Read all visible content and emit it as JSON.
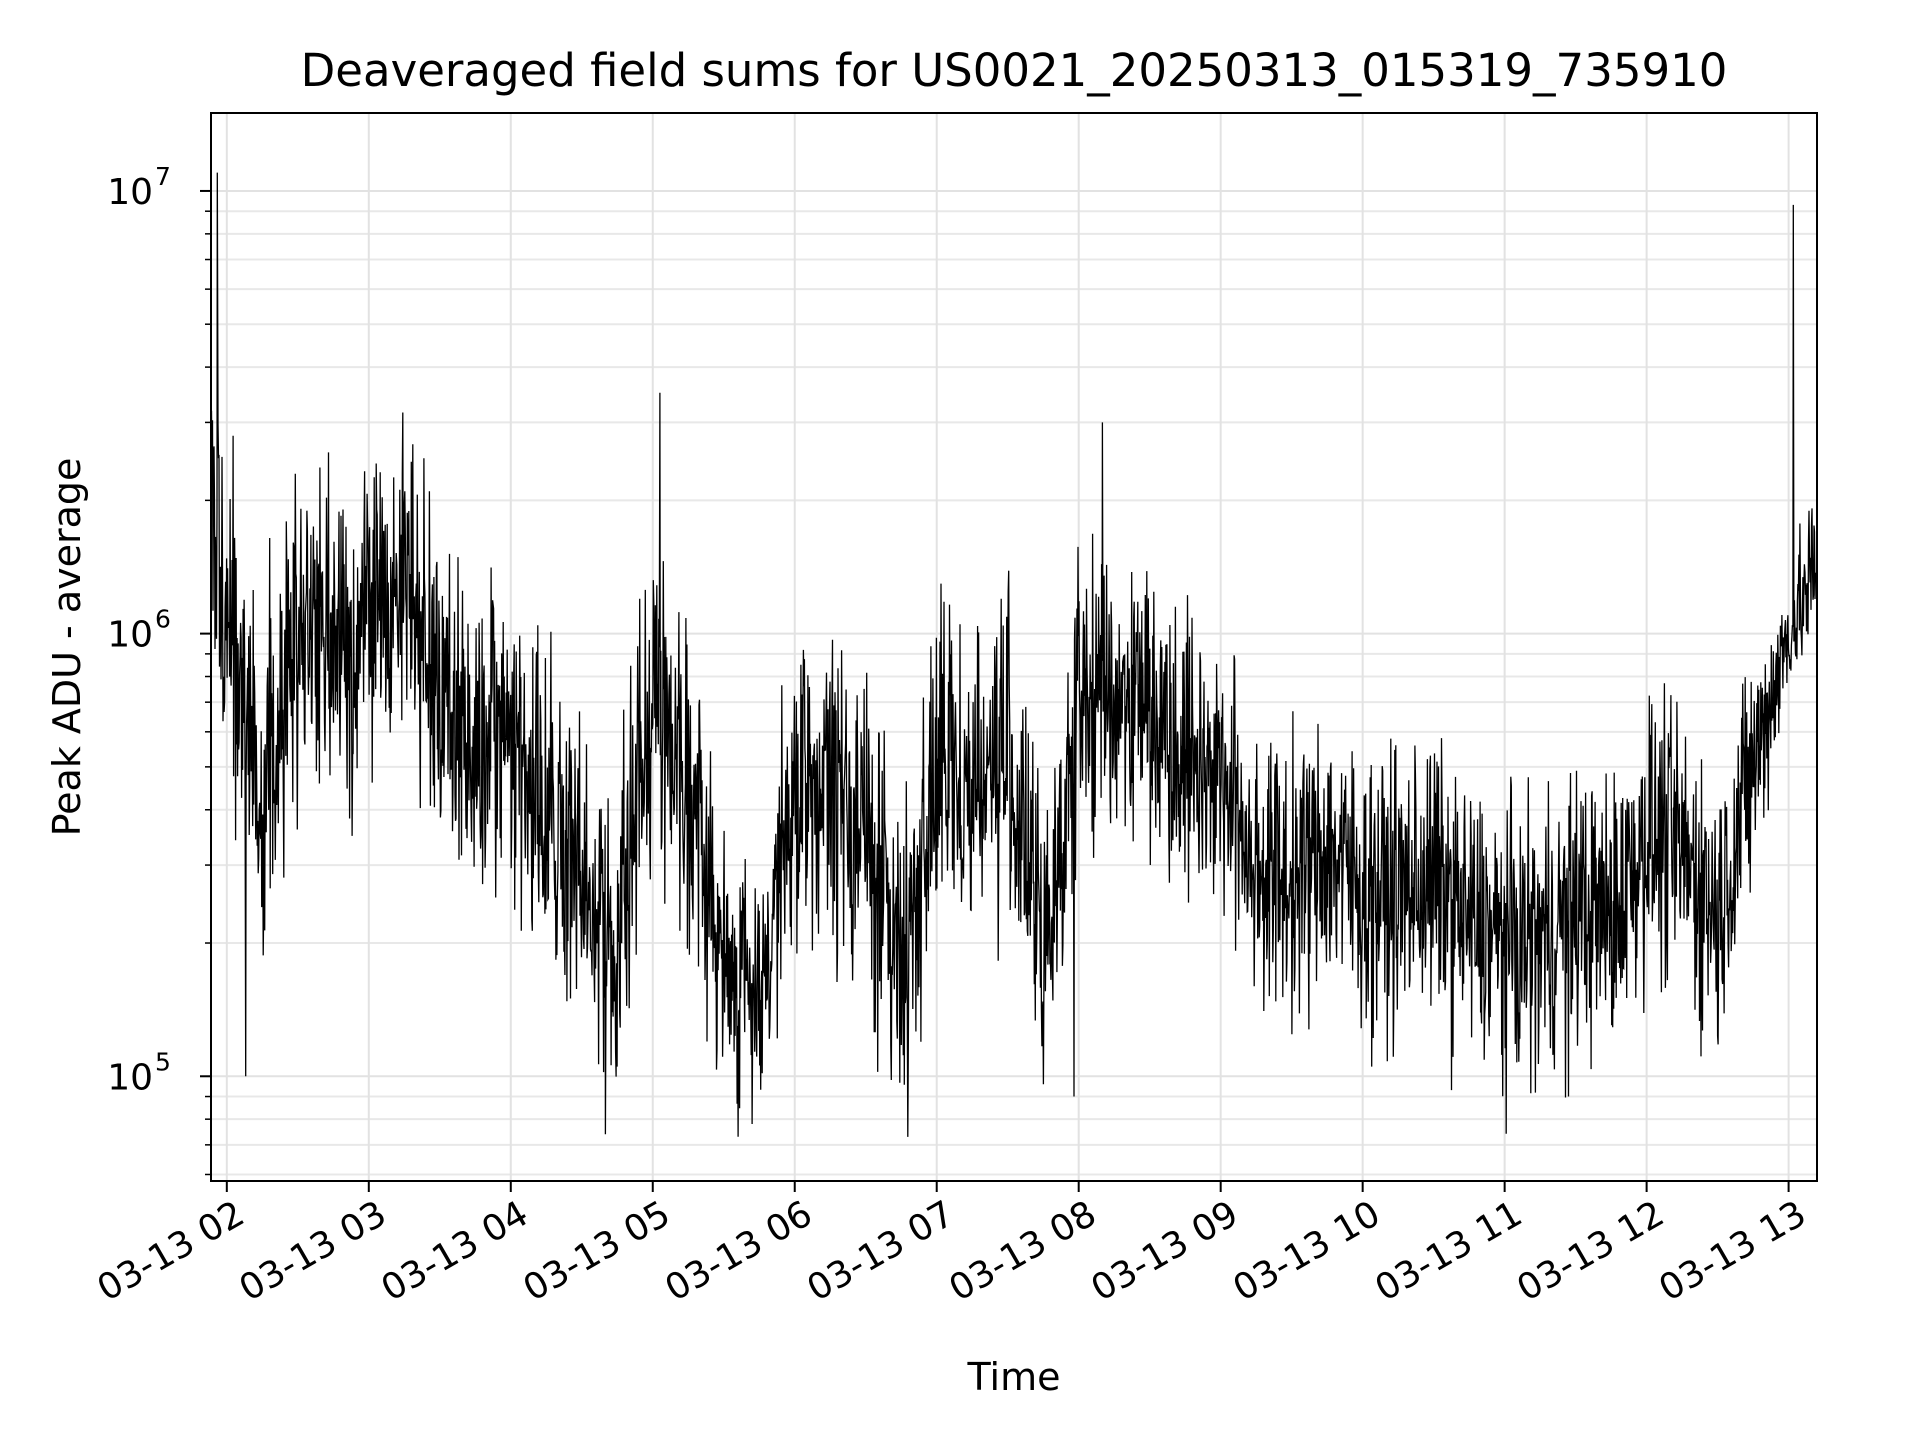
{
  "chart_data": {
    "type": "line",
    "title": "Deaveraged field sums for US0021_20250313_015319_735910",
    "xlabel": "Time",
    "ylabel": "Peak ADU - average",
    "y_scale": "log",
    "ylim": [
      58000,
      15000000
    ],
    "xlim": [
      "2025-03-13T01:53:19",
      "2025-03-13T13:12:00"
    ],
    "grid": true,
    "x_ticks": [
      {
        "value": "2025-03-13T02:00",
        "label": "03-13 02"
      },
      {
        "value": "2025-03-13T03:00",
        "label": "03-13 03"
      },
      {
        "value": "2025-03-13T04:00",
        "label": "03-13 04"
      },
      {
        "value": "2025-03-13T05:00",
        "label": "03-13 05"
      },
      {
        "value": "2025-03-13T06:00",
        "label": "03-13 06"
      },
      {
        "value": "2025-03-13T07:00",
        "label": "03-13 07"
      },
      {
        "value": "2025-03-13T08:00",
        "label": "03-13 08"
      },
      {
        "value": "2025-03-13T09:00",
        "label": "03-13 09"
      },
      {
        "value": "2025-03-13T10:00",
        "label": "03-13 10"
      },
      {
        "value": "2025-03-13T11:00",
        "label": "03-13 11"
      },
      {
        "value": "2025-03-13T12:00",
        "label": "03-13 12"
      },
      {
        "value": "2025-03-13T13:00",
        "label": "03-13 13"
      }
    ],
    "y_ticks": [
      {
        "value": 100000,
        "base": "10",
        "exp": "5"
      },
      {
        "value": 1000000,
        "base": "10",
        "exp": "6"
      },
      {
        "value": 10000000,
        "base": "10",
        "exp": "7"
      }
    ],
    "series_color": "#000000",
    "series": [
      {
        "x": [
          "2025-03-13T01:53",
          "2025-03-13T02:00",
          "2025-03-13T02:15",
          "2025-03-13T02:30",
          "2025-03-13T02:45",
          "2025-03-13T03:00",
          "2025-03-13T03:15",
          "2025-03-13T03:30",
          "2025-03-13T03:45",
          "2025-03-13T04:00",
          "2025-03-13T04:15",
          "2025-03-13T04:30",
          "2025-03-13T04:45",
          "2025-03-13T05:00",
          "2025-03-13T05:15",
          "2025-03-13T05:30",
          "2025-03-13T05:45",
          "2025-03-13T06:00",
          "2025-03-13T06:15",
          "2025-03-13T06:30",
          "2025-03-13T06:45",
          "2025-03-13T07:00",
          "2025-03-13T07:15",
          "2025-03-13T07:30",
          "2025-03-13T07:45",
          "2025-03-13T08:00",
          "2025-03-13T08:15",
          "2025-03-13T08:30",
          "2025-03-13T08:45",
          "2025-03-13T09:00",
          "2025-03-13T09:15",
          "2025-03-13T09:30",
          "2025-03-13T09:45",
          "2025-03-13T10:00",
          "2025-03-13T10:15",
          "2025-03-13T10:30",
          "2025-03-13T10:45",
          "2025-03-13T11:00",
          "2025-03-13T11:15",
          "2025-03-13T11:30",
          "2025-03-13T11:45",
          "2025-03-13T12:00",
          "2025-03-13T12:15",
          "2025-03-13T12:30",
          "2025-03-13T12:45",
          "2025-03-13T13:00",
          "2025-03-13T13:12"
        ],
        "center": [
          2000000,
          1100000,
          450000,
          1000000,
          900000,
          1100000,
          1300000,
          800000,
          500000,
          600000,
          380000,
          260000,
          200000,
          750000,
          500000,
          170000,
          160000,
          400000,
          450000,
          360000,
          170000,
          500000,
          450000,
          550000,
          180000,
          700000,
          750000,
          700000,
          550000,
          480000,
          300000,
          270000,
          330000,
          260000,
          260000,
          280000,
          220000,
          200000,
          200000,
          240000,
          230000,
          350000,
          320000,
          230000,
          500000,
          1000000,
          1400000
        ],
        "spread": [
          6,
          3.5,
          3.5,
          3.5,
          3.5,
          3.5,
          3.5,
          3.5,
          3.5,
          3.5,
          3.5,
          3.5,
          3.5,
          2.8,
          3.5,
          2.6,
          2.6,
          3.5,
          3.5,
          3.5,
          3.5,
          3.5,
          3.5,
          3.5,
          3.5,
          3,
          3,
          3,
          3,
          3,
          3,
          3,
          3,
          3,
          3,
          3,
          3,
          3,
          3,
          3,
          3,
          3,
          3,
          3,
          2.5,
          1.6,
          2.2
        ],
        "spikes": [
          {
            "x": "2025-03-13T01:56",
            "y": 11000000
          },
          {
            "x": "2025-03-13T02:08",
            "y": 100000
          },
          {
            "x": "2025-03-13T04:40",
            "y": 74000
          },
          {
            "x": "2025-03-13T05:03",
            "y": 3500000
          },
          {
            "x": "2025-03-13T05:42",
            "y": 78000
          },
          {
            "x": "2025-03-13T07:58",
            "y": 90000
          },
          {
            "x": "2025-03-13T08:10",
            "y": 3000000
          },
          {
            "x": "2025-03-13T11:27",
            "y": 90000
          },
          {
            "x": "2025-03-13T13:02",
            "y": 9300000
          }
        ]
      }
    ]
  }
}
